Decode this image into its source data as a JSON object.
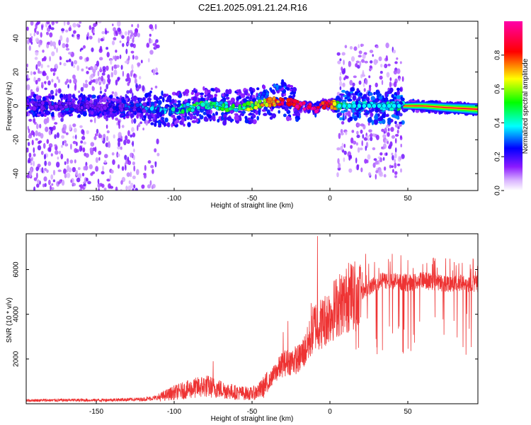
{
  "title": "C2E1.2025.091.21.24.R16",
  "chart_data": [
    {
      "type": "heatmap",
      "title": "C2E1.2025.091.21.24.R16",
      "xlabel": "Height of straight line (km)",
      "ylabel": "Frequency (Hz)",
      "xlim": [
        -195,
        95
      ],
      "ylim": [
        -50,
        50
      ],
      "x_ticks": [
        -150,
        -100,
        -50,
        0,
        50
      ],
      "y_ticks": [
        -40,
        -20,
        0,
        20,
        40
      ],
      "colorbar": {
        "label": "Normalized spectral amplitude",
        "range": [
          0,
          1
        ],
        "ticks": [
          0.0,
          0.2,
          0.4,
          0.6,
          0.8
        ],
        "tick_labels": [
          "0.0",
          "0.2",
          "0.4",
          "0.6",
          "0.8"
        ],
        "colormap": [
          "#ffffff",
          "#d9b3ff",
          "#8c1aff",
          "#0000ff",
          "#00ffff",
          "#00ff00",
          "#ffff00",
          "#ff0000",
          "#ff00aa"
        ]
      },
      "ridge": {
        "x": [
          -195,
          -170,
          -150,
          -130,
          -120,
          -110,
          -100,
          -90,
          -80,
          -70,
          -60,
          -50,
          -40,
          -30,
          -25,
          -20,
          -15,
          -10,
          -5,
          0,
          5,
          10,
          20,
          30,
          40,
          47,
          60,
          75,
          95
        ],
        "y": [
          0,
          0,
          0,
          -1,
          -1,
          -2,
          -2,
          -1,
          1,
          0,
          -1,
          0,
          2,
          3,
          2,
          0,
          0,
          -3,
          1,
          1,
          0,
          0,
          0,
          0,
          0,
          0,
          0,
          -1,
          -2
        ],
        "amplitude": [
          0.15,
          0.2,
          0.15,
          0.2,
          0.25,
          0.3,
          0.35,
          0.45,
          0.5,
          0.45,
          0.5,
          0.6,
          0.7,
          0.85,
          0.9,
          0.92,
          0.95,
          0.95,
          0.9,
          0.9,
          0.6,
          0.4,
          0.35,
          0.35,
          0.35,
          0.4,
          0.6,
          0.75,
          0.85
        ]
      },
      "diagonal_feature": {
        "x": [
          -55,
          -28
        ],
        "y": [
          0,
          14
        ]
      }
    },
    {
      "type": "line",
      "xlabel": "Height of straight line (km)",
      "ylabel": "SNR (10 * v/v)",
      "xlim": [
        -195,
        95
      ],
      "ylim": [
        0,
        7600
      ],
      "x_ticks": [
        -150,
        -100,
        -50,
        0,
        50
      ],
      "y_ticks": [
        2000,
        4000,
        6000
      ],
      "color": "#ee3333",
      "envelope": {
        "x": [
          -195,
          -170,
          -150,
          -120,
          -110,
          -100,
          -90,
          -80,
          -70,
          -60,
          -50,
          -45,
          -40,
          -35,
          -30,
          -25,
          -20,
          -15,
          -10,
          -5,
          0,
          5,
          10,
          15,
          20,
          25,
          30,
          35,
          40,
          50,
          60,
          70,
          80,
          95
        ],
        "y": [
          150,
          160,
          160,
          200,
          280,
          500,
          650,
          800,
          650,
          500,
          450,
          600,
          900,
          1400,
          1800,
          1900,
          2000,
          2500,
          3500,
          3600,
          4000,
          4400,
          4600,
          4900,
          5000,
          5200,
          5400,
          5500,
          5500,
          5400,
          5500,
          5400,
          5400,
          5350
        ]
      },
      "spikes": [
        {
          "x": -75,
          "y": 1900
        },
        {
          "x": -30,
          "y": 3200
        },
        {
          "x": -27,
          "y": 3700
        },
        {
          "x": -12,
          "y": 4500
        },
        {
          "x": -8,
          "y": 7500
        },
        {
          "x": 12,
          "y": 6300
        },
        {
          "x": 23,
          "y": 6700
        },
        {
          "x": 40,
          "y": 6700
        },
        {
          "x": 85,
          "y": 6300
        }
      ]
    }
  ]
}
